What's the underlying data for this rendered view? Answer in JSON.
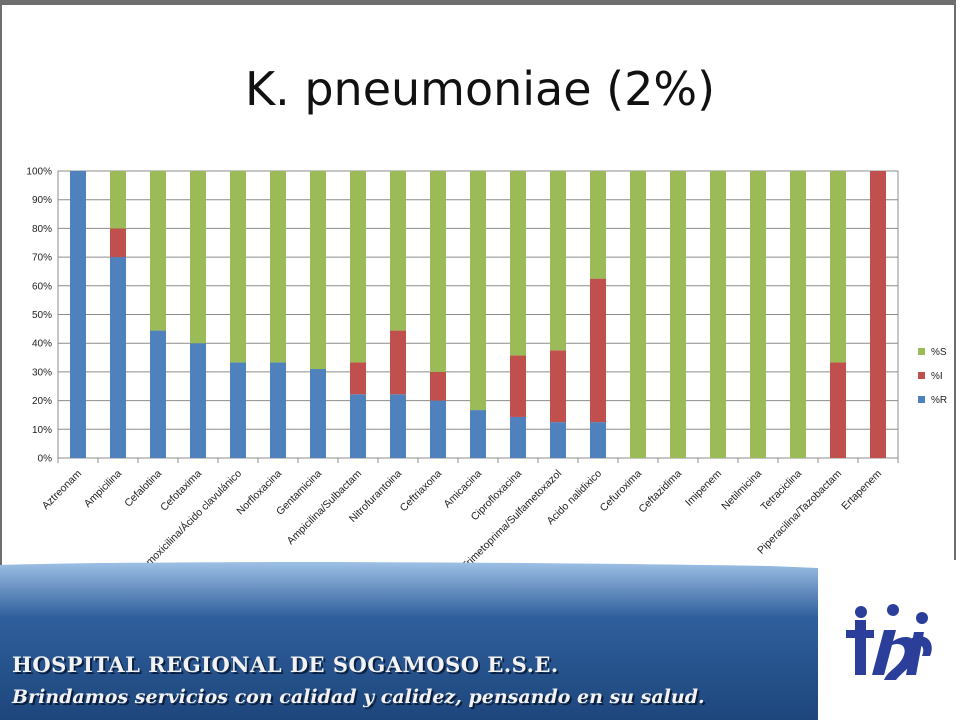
{
  "title": "K. pneumoniae (2%)",
  "footer": {
    "hospital": "HOSPITAL REGIONAL DE SOGAMOSO E.S.E.",
    "slogan": "Brindamos servicios con calidad y calidez, pensando en su salud."
  },
  "colors": {
    "R": "#4f81bd",
    "I": "#c0504d",
    "S": "#9bbb59",
    "banner_dark": "#1f4a80",
    "banner_light": "#8fb3dc",
    "logo": "#2b3e9a"
  },
  "chart_data": {
    "type": "bar",
    "stacked": true,
    "title": "",
    "xlabel": "",
    "ylabel": "",
    "ylim": [
      0,
      100
    ],
    "yticks": [
      "0%",
      "10%",
      "20%",
      "30%",
      "40%",
      "50%",
      "60%",
      "70%",
      "80%",
      "90%",
      "100%"
    ],
    "grid": true,
    "legend_position": "right",
    "categories": [
      "Aztreonam",
      "Ampicilina",
      "Cefalotina",
      "Cefotaxima",
      "Amoxicilina/Ácido clavulánico",
      "Norfloxacina",
      "Gentamicina",
      "Ampicilina/Sulbactam",
      "Nitrofurantoina",
      "Ceftriaxona",
      "Amicacina",
      "Ciprofloxacina",
      "Trimetoprima/Sulfametoxazol",
      "Acido nalidixico",
      "Cefuroxima",
      "Ceftazidima",
      "Imipenem",
      "Netilmicina",
      "Tetraciclina",
      "Piperacilina/Tazobactam",
      "Ertapenem"
    ],
    "series": [
      {
        "name": "%R",
        "values": [
          100,
          70,
          44.4,
          40,
          33.3,
          33.3,
          31,
          22.2,
          22.2,
          20,
          16.7,
          14.3,
          12.5,
          12.5,
          0,
          0,
          0,
          0,
          0,
          0,
          0
        ]
      },
      {
        "name": "%I",
        "values": [
          0,
          10,
          0,
          0,
          0,
          0,
          0,
          11.1,
          22.2,
          10,
          0,
          21.4,
          25,
          50,
          0,
          0,
          0,
          0,
          0,
          33.3,
          100
        ]
      },
      {
        "name": "%S",
        "values": [
          0,
          20,
          55.6,
          60,
          66.7,
          66.7,
          69,
          66.7,
          55.6,
          70,
          83.3,
          64.3,
          62.5,
          37.5,
          100,
          100,
          100,
          100,
          100,
          66.7,
          0
        ]
      }
    ],
    "legend_order": [
      "%S",
      "%I",
      "%R"
    ]
  }
}
